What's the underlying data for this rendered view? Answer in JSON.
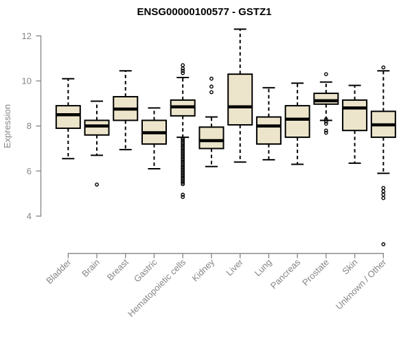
{
  "chart_data": {
    "type": "boxplot",
    "title": "ENSG00000100577 - GSTZ1",
    "ylabel": "Expression",
    "xlabel": "",
    "ylim": [
      4,
      12
    ],
    "yticks": [
      4,
      6,
      8,
      10,
      12
    ],
    "grid": false,
    "legend": false,
    "x_label_rotation_deg": 45,
    "categories": [
      "Bladder",
      "Brain",
      "Breast",
      "Gastric",
      "Hematopoietic cells",
      "Kidney",
      "Liver",
      "Lung",
      "Pancreas",
      "Prostate",
      "Skin",
      "Unknown / Other"
    ],
    "series": [
      {
        "category": "Bladder",
        "whisker_low": 6.55,
        "q1": 7.9,
        "median": 8.5,
        "q3": 8.9,
        "whisker_high": 10.1,
        "outliers": []
      },
      {
        "category": "Brain",
        "whisker_low": 6.7,
        "q1": 7.6,
        "median": 8.0,
        "q3": 8.25,
        "whisker_high": 9.1,
        "outliers": [
          5.4
        ]
      },
      {
        "category": "Breast",
        "whisker_low": 6.95,
        "q1": 8.25,
        "median": 8.75,
        "q3": 9.3,
        "whisker_high": 10.45,
        "outliers": []
      },
      {
        "category": "Gastric",
        "whisker_low": 6.1,
        "q1": 7.2,
        "median": 7.7,
        "q3": 8.25,
        "whisker_high": 8.8,
        "outliers": []
      },
      {
        "category": "Hematopoietic cells",
        "whisker_low": 7.5,
        "q1": 8.45,
        "median": 8.85,
        "q3": 9.15,
        "whisker_high": 10.15,
        "outliers": [
          10.7,
          10.55,
          10.45,
          10.35,
          7.45,
          7.38,
          7.31,
          7.24,
          7.17,
          7.1,
          7.03,
          6.96,
          6.89,
          6.82,
          6.75,
          6.68,
          6.61,
          6.54,
          6.47,
          6.4,
          6.33,
          6.26,
          6.19,
          6.12,
          6.05,
          5.98,
          5.91,
          5.84,
          5.77,
          5.7,
          5.63,
          5.56,
          5.49,
          5.42,
          4.95,
          4.85
        ]
      },
      {
        "category": "Kidney",
        "whisker_low": 6.2,
        "q1": 7.0,
        "median": 7.35,
        "q3": 7.95,
        "whisker_high": 8.4,
        "outliers": [
          10.1,
          9.75,
          9.5
        ]
      },
      {
        "category": "Liver",
        "whisker_low": 6.4,
        "q1": 8.05,
        "median": 8.85,
        "q3": 10.3,
        "whisker_high": 12.3,
        "outliers": []
      },
      {
        "category": "Lung",
        "whisker_low": 6.5,
        "q1": 7.2,
        "median": 8.0,
        "q3": 8.4,
        "whisker_high": 9.7,
        "outliers": []
      },
      {
        "category": "Pancreas",
        "whisker_low": 6.3,
        "q1": 7.5,
        "median": 8.3,
        "q3": 8.9,
        "whisker_high": 9.9,
        "outliers": []
      },
      {
        "category": "Prostate",
        "whisker_low": 8.25,
        "q1": 8.97,
        "median": 9.12,
        "q3": 9.45,
        "whisker_high": 9.95,
        "outliers": [
          10.3,
          8.3,
          8.2,
          8.1,
          7.8,
          7.7
        ]
      },
      {
        "category": "Skin",
        "whisker_low": 6.35,
        "q1": 7.8,
        "median": 8.8,
        "q3": 9.15,
        "whisker_high": 9.8,
        "outliers": []
      },
      {
        "category": "Unknown / Other",
        "whisker_low": 5.9,
        "q1": 7.5,
        "median": 8.05,
        "q3": 8.65,
        "whisker_high": 10.45,
        "outliers": [
          10.6,
          5.25,
          5.1,
          4.95,
          4.8,
          2.75
        ]
      }
    ],
    "colors": {
      "box_fill": "#ece5cb",
      "box_stroke": "#000000",
      "median": "#000000",
      "whisker": "#000000",
      "outlier_stroke": "#000000",
      "axis": "#8a8a8a",
      "tick_text": "#858585",
      "title_text": "#000000",
      "background": "#ffffff"
    }
  }
}
